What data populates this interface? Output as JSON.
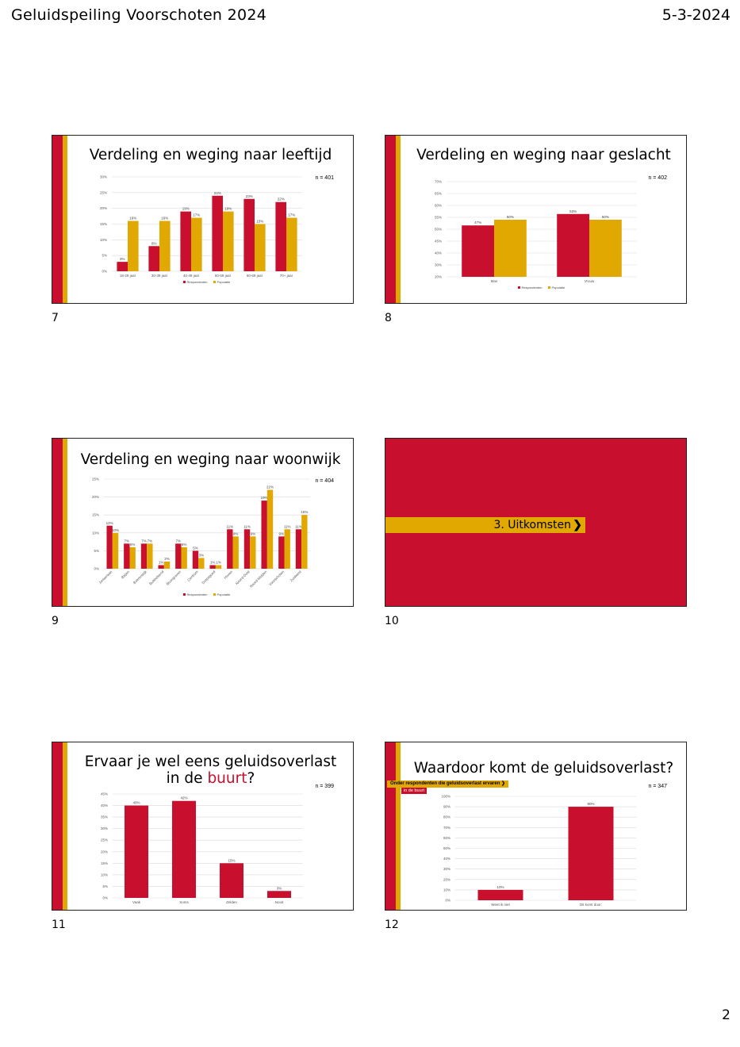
{
  "header": {
    "title": "Geluidspeiling Voorschoten 2024",
    "date": "5-3-2024"
  },
  "page_number": "2",
  "colors": {
    "red": "#c8102e",
    "gold": "#e0a800"
  },
  "slides": [
    {
      "number": "7",
      "title": "Verdeling en weging naar leeftijd",
      "n": "n = 401"
    },
    {
      "number": "8",
      "title": "Verdeling en weging naar geslacht",
      "n": "n = 402"
    },
    {
      "number": "9",
      "title": "Verdeling en weging naar woonwijk",
      "n": "n = 404"
    },
    {
      "number": "10",
      "section": "3. Uitkomsten"
    },
    {
      "number": "11",
      "title_line1": "Ervaar je wel eens geluidsoverlast",
      "title_line2_pre": "in de ",
      "title_line2_hl": "buurt",
      "title_line2_post": "?",
      "n": "n = 399"
    },
    {
      "number": "12",
      "title": "Waardoor komt de geluidsoverlast?",
      "subtitle1": "Onder respondenten die geluidsoverlast ervaren",
      "subtitle2": "in de buurt",
      "n": "n = 347"
    }
  ],
  "chart_data": [
    {
      "type": "bar",
      "categories": [
        "18-29 jaar",
        "30-39 jaar",
        "40-49 jaar",
        "50-59 jaar",
        "60-69 jaar",
        "70+ jaar"
      ],
      "series": [
        {
          "name": "Respondenten",
          "values": [
            3,
            8,
            19,
            24,
            23,
            22
          ]
        },
        {
          "name": "Populatie",
          "values": [
            16,
            16,
            17,
            19,
            15,
            17
          ]
        }
      ],
      "labels": [
        [
          "3%",
          "8%",
          "19%",
          "24%",
          "23%",
          "22%"
        ],
        [
          "16%",
          "16%",
          "17%",
          "19%",
          "15%",
          "17%"
        ]
      ],
      "yticks": [
        "0%",
        "5%",
        "10%",
        "15%",
        "20%",
        "25%",
        "30%"
      ],
      "ylim": [
        0,
        30
      ],
      "grid": true,
      "legend": "bottom"
    },
    {
      "type": "bar",
      "categories": [
        "Man",
        "Vrouw"
      ],
      "series": [
        {
          "name": "Respondenten",
          "values": [
            47,
            53
          ]
        },
        {
          "name": "Populatie",
          "values": [
            50,
            50
          ]
        }
      ],
      "labels": [
        [
          "47%",
          "53%"
        ],
        [
          "50%",
          "50%"
        ]
      ],
      "yticks": [
        "20%",
        "30%",
        "40%",
        "45%",
        "50%",
        "55%",
        "60%",
        "65%",
        "70%"
      ],
      "ylim": [
        20,
        70
      ],
      "grid": true,
      "legend": "bottom"
    },
    {
      "type": "bar",
      "categories": [
        "Jonkerlaan",
        "Baljen",
        "Boerenwijk",
        "Bubbelsend",
        "Bruingraven",
        "Centrum",
        "Dorpsgoed",
        "Hoven",
        "Noord-Oost",
        "Noord-Midden",
        "Voorschoten",
        "Zuidwest"
      ],
      "series": [
        {
          "name": "Respondenten",
          "values": [
            12,
            7,
            7,
            1,
            7,
            5,
            1,
            11,
            11,
            19,
            9,
            11
          ]
        },
        {
          "name": "Populatie",
          "values": [
            10,
            6,
            7,
            2,
            6,
            3,
            1,
            9,
            9,
            22,
            11,
            15
          ]
        }
      ],
      "labels": [
        [
          "12%",
          "7%",
          "7%",
          "1%",
          "7%",
          "5%",
          "1%",
          "11%",
          "11%",
          "19%",
          "9%",
          "11%"
        ],
        [
          "10%",
          "6%",
          "7%",
          "2%",
          "6%",
          "3%",
          "1%",
          "9%",
          "9%",
          "22%",
          "11%",
          "15%"
        ]
      ],
      "yticks": [
        "0%",
        "5%",
        "10%",
        "15%",
        "20%",
        "25%"
      ],
      "ylim": [
        0,
        25
      ],
      "grid": true,
      "legend": "bottom"
    },
    {
      "type": "bar",
      "categories": [
        "Vaak",
        "Soms",
        "Zelden",
        "Nooit"
      ],
      "series": [
        {
          "name": "",
          "values": [
            40,
            42,
            15,
            3
          ]
        }
      ],
      "labels": [
        [
          "40%",
          "42%",
          "15%",
          "3%"
        ]
      ],
      "yticks": [
        "0%",
        "5%",
        "10%",
        "15%",
        "20%",
        "25%",
        "30%",
        "35%",
        "40%",
        "45%"
      ],
      "ylim": [
        0,
        45
      ],
      "grid": true
    },
    {
      "type": "bar",
      "categories": [
        "Weet ik niet",
        "Dit komt door:"
      ],
      "series": [
        {
          "name": "",
          "values": [
            10,
            90
          ]
        }
      ],
      "labels": [
        [
          "10%",
          "90%"
        ]
      ],
      "yticks": [
        "0%",
        "10%",
        "20%",
        "30%",
        "40%",
        "50%",
        "60%",
        "70%",
        "80%",
        "90%",
        "100%"
      ],
      "ylim": [
        0,
        100
      ],
      "grid": true
    }
  ]
}
